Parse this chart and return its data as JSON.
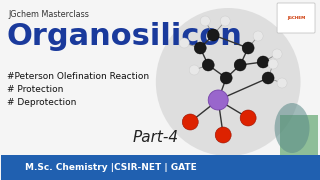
{
  "bg_color": "#f5f5f5",
  "top_bar_text": "JGchem Masterclass",
  "title": "Organosilicon",
  "bullet1": "#Peterson Olefination Reaction",
  "bullet2": "# Protection",
  "bullet3": "# Deprotection",
  "part_text": "Part-4",
  "bottom_bar_text": "M.Sc. Chemistry |CSIR-NET | GATE",
  "bottom_bar_color": "#2060b0",
  "bottom_bar_text_color": "#ffffff",
  "title_color": "#1a3a9c",
  "top_text_color": "#333333",
  "bullet_color": "#111111",
  "part_color": "#222222",
  "circle_color": "#dcdcdc",
  "si_color": "#9966cc",
  "o_color": "#dd2200",
  "c_color": "#1a1a1a",
  "h_color": "#e8e8e8",
  "bond_color": "#333333"
}
